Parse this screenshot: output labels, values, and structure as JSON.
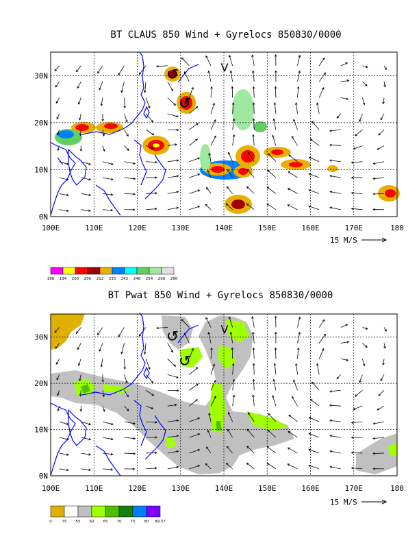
{
  "panels": [
    {
      "title": "BT CLAUS 850 Wind + Gyrelocs 850830/0000",
      "field": "CLAUS",
      "lat_labels": [
        "0N",
        "10N",
        "20N",
        "30N"
      ],
      "lon_labels": [
        "100E",
        "110E",
        "120E",
        "130E",
        "140E",
        "150E",
        "160E",
        "170E",
        "180"
      ],
      "ref_vector_label": "15 M/S",
      "colorbar": {
        "labels": [
          "188",
          "194",
          "200",
          "206",
          "212",
          "230",
          "242",
          "248",
          "254",
          "260",
          "266"
        ],
        "colors": [
          "#ff00ff",
          "#ffff00",
          "#ff0000",
          "#a00000",
          "#e8b000",
          "#0080ff",
          "#00ffff",
          "#60d060",
          "#a0e8a0",
          "#e0e0e0"
        ]
      }
    },
    {
      "title": "BT Pwat 850 Wind + Gyrelocs 850830/0000",
      "field": "Pwat",
      "lat_labels": [
        "0N",
        "10N",
        "20N",
        "30N"
      ],
      "lon_labels": [
        "100E",
        "110E",
        "120E",
        "130E",
        "140E",
        "150E",
        "160E",
        "170E",
        "180"
      ],
      "ref_vector_label": "15 M/S",
      "colorbar": {
        "labels": [
          "0",
          "35",
          "55",
          "60",
          "65",
          "70",
          "75",
          "80",
          "89.57"
        ],
        "colors": [
          "#e0b000",
          "#ffffff",
          "#c0c0c0",
          "#a0ff00",
          "#50c000",
          "#108010",
          "#0080ff",
          "#8000ff"
        ]
      }
    }
  ]
}
